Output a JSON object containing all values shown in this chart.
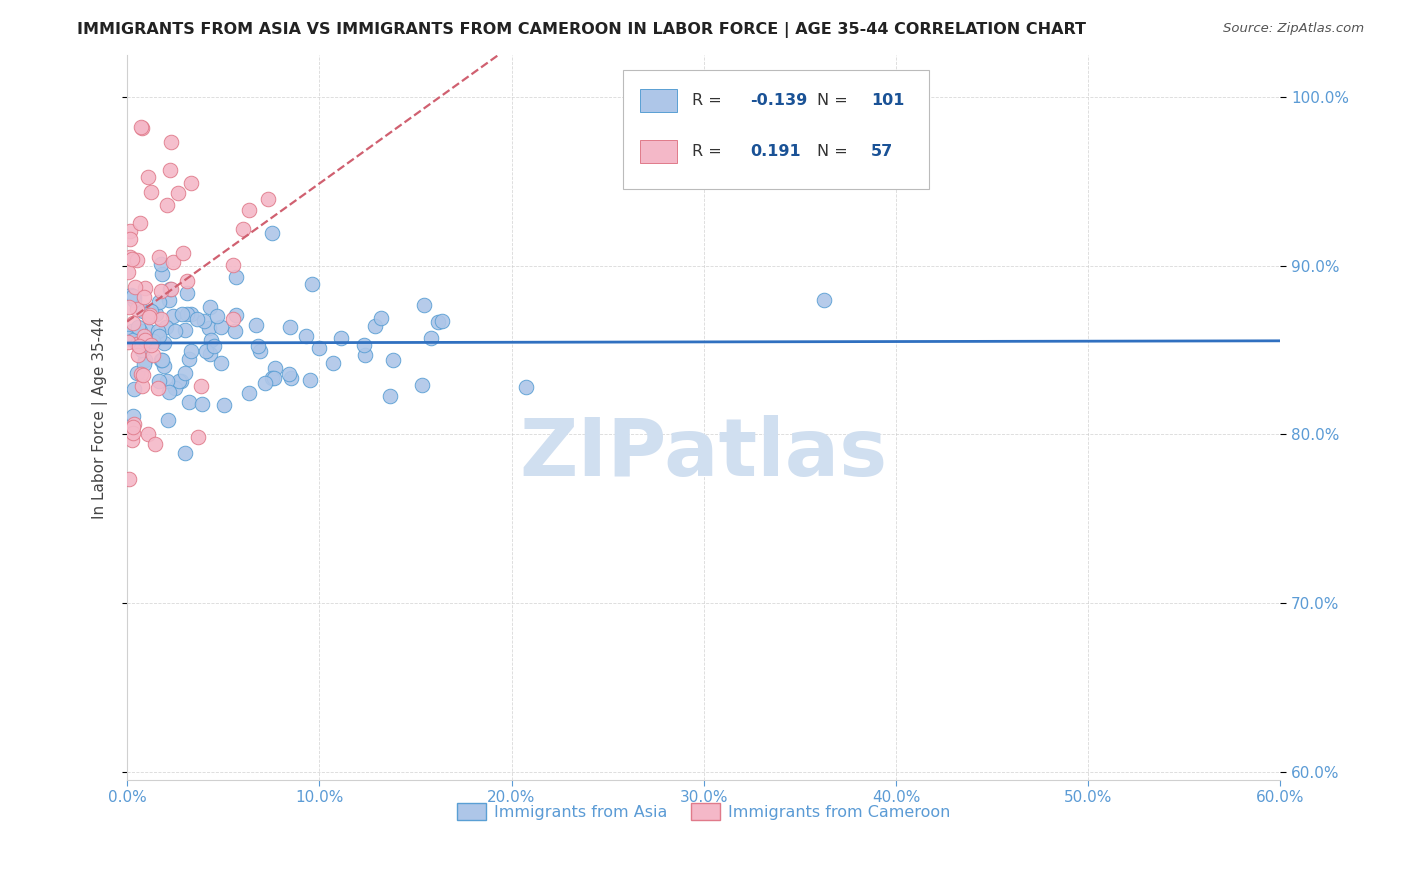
{
  "title": "IMMIGRANTS FROM ASIA VS IMMIGRANTS FROM CAMEROON IN LABOR FORCE | AGE 35-44 CORRELATION CHART",
  "source": "Source: ZipAtlas.com",
  "ylabel": "In Labor Force | Age 35-44",
  "xlim": [
    0.0,
    0.6
  ],
  "ylim": [
    0.595,
    1.025
  ],
  "xticks": [
    0.0,
    0.1,
    0.2,
    0.3,
    0.4,
    0.5,
    0.6
  ],
  "yticks": [
    0.6,
    0.7,
    0.8,
    0.9,
    1.0
  ],
  "blue_fill": "#aec6e8",
  "blue_edge": "#5a9fd4",
  "pink_fill": "#f4b8c8",
  "pink_edge": "#e07a8a",
  "trend_blue": "#3070c0",
  "trend_pink": "#d06070",
  "axis_tick_color": "#5b9bd5",
  "grid_color": "#d0d0d0",
  "label_color": "#444444",
  "legend_text_color": "#333333",
  "legend_val_color": "#1a5296",
  "R_asia": -0.139,
  "N_asia": 101,
  "R_cameroon": 0.191,
  "N_cameroon": 57,
  "watermark": "ZIPatlas",
  "watermark_color": "#d0dff0",
  "asia_seed": 77,
  "cam_seed": 33
}
